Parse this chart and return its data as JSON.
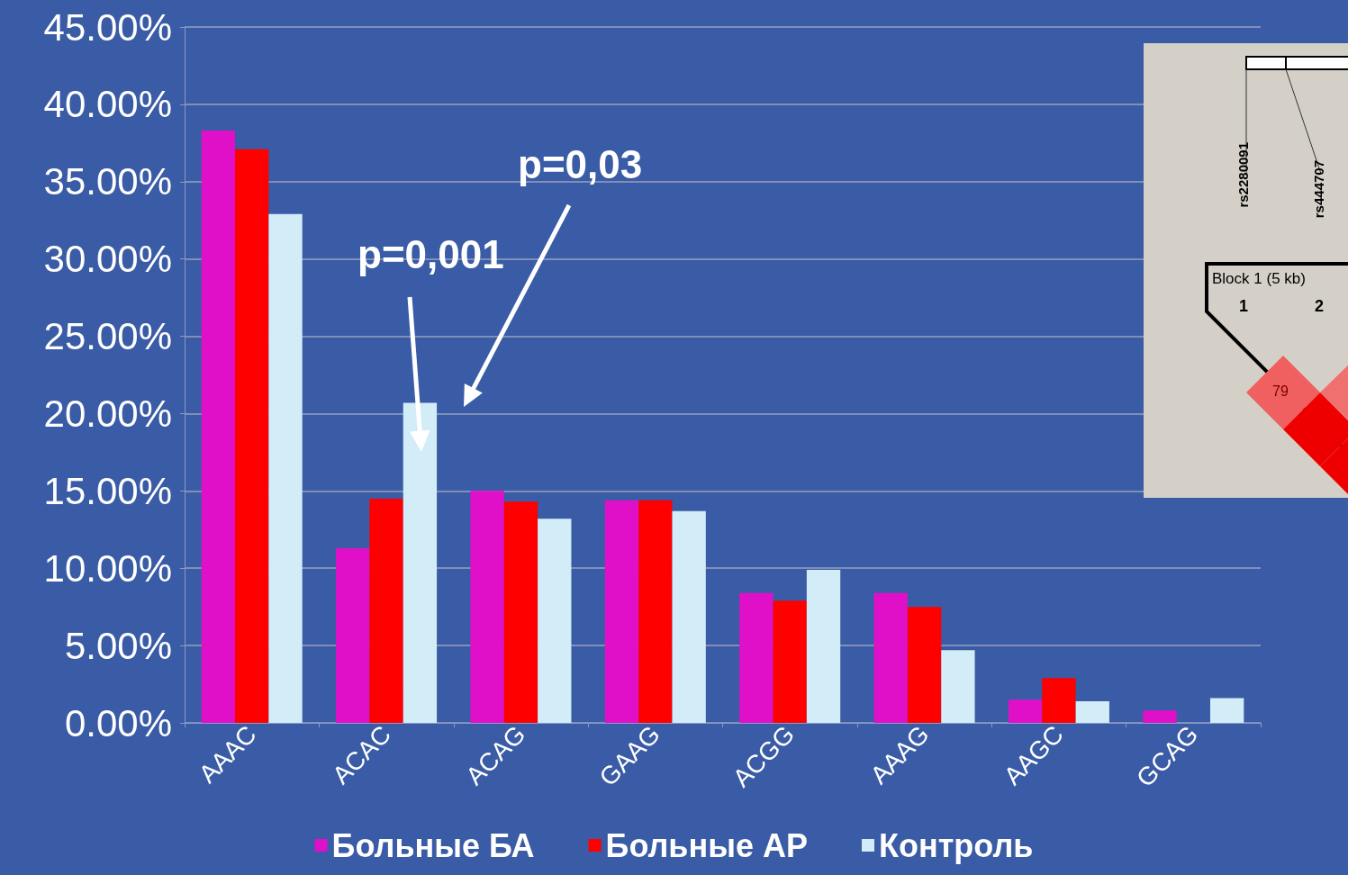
{
  "chart_data": {
    "type": "bar",
    "categories": [
      "AAAC",
      "ACAC",
      "ACAG",
      "GAAG",
      "ACGG",
      "AAAG",
      "AAGC",
      "GCAG"
    ],
    "series": [
      {
        "name": "Больные БА",
        "color": "#e010c8",
        "values": [
          38.3,
          11.3,
          15.0,
          14.4,
          8.4,
          8.4,
          1.5,
          0.8
        ]
      },
      {
        "name": "Больные АР",
        "color": "#ff0000",
        "values": [
          37.1,
          14.5,
          14.3,
          14.4,
          7.9,
          7.5,
          2.9,
          0
        ]
      },
      {
        "name": "Контроль",
        "color": "#d2ecf8",
        "values": [
          32.9,
          20.7,
          13.2,
          13.7,
          9.9,
          4.7,
          1.4,
          1.6
        ]
      }
    ],
    "ylim": [
      0,
      45
    ],
    "yticks": [
      {
        "value": 0,
        "label": "0.00%"
      },
      {
        "value": 5,
        "label": "5.00%"
      },
      {
        "value": 10,
        "label": "10.00%"
      },
      {
        "value": 15,
        "label": "15.00%"
      },
      {
        "value": 20,
        "label": "20.00%"
      },
      {
        "value": 25,
        "label": "25.00%"
      },
      {
        "value": 30,
        "label": "30.00%"
      },
      {
        "value": 35,
        "label": "35.00%"
      },
      {
        "value": 40,
        "label": "40.00%"
      },
      {
        "value": 45,
        "label": "45.00%"
      }
    ],
    "grid": "y",
    "legend": "bottom",
    "annotations": [
      "p=0,001",
      "p=0,03",
      "rs2280091",
      "rs444707",
      "Block 1 (5 kb)",
      "1",
      "2",
      "79"
    ]
  }
}
